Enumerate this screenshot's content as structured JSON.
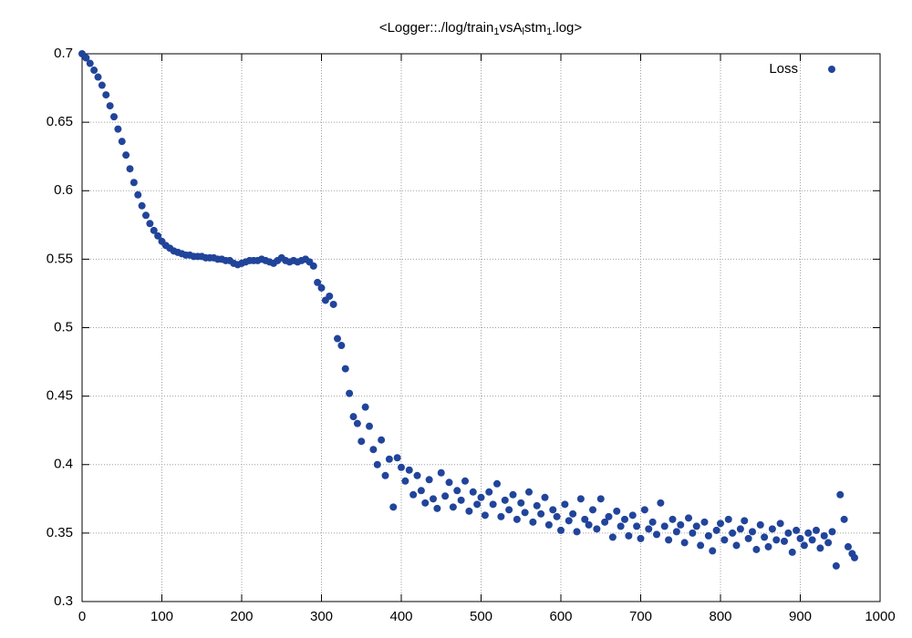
{
  "chart_data": {
    "type": "scatter",
    "title": "<Logger::./log/train_1vsA_lstm_1.log>",
    "xlim": [
      0,
      1000
    ],
    "xticks": [
      0,
      100,
      200,
      300,
      400,
      500,
      600,
      700,
      800,
      900,
      1000
    ],
    "ylim": [
      0.3,
      0.7
    ],
    "yticks": [
      0.3,
      0.35,
      0.4,
      0.45,
      0.5,
      0.55,
      0.6,
      0.65,
      0.7
    ],
    "grid": true,
    "legend": "top right",
    "x": [
      0,
      5,
      10,
      15,
      20,
      25,
      30,
      35,
      40,
      45,
      50,
      55,
      60,
      65,
      70,
      75,
      80,
      85,
      90,
      95,
      100,
      105,
      110,
      115,
      120,
      125,
      130,
      135,
      140,
      145,
      150,
      155,
      160,
      165,
      170,
      175,
      180,
      185,
      190,
      195,
      200,
      205,
      210,
      215,
      220,
      225,
      230,
      235,
      240,
      245,
      250,
      255,
      260,
      265,
      270,
      275,
      280,
      285,
      290,
      295,
      300,
      305,
      310,
      315,
      320,
      325,
      330,
      335,
      340,
      345,
      350,
      355,
      360,
      365,
      370,
      375,
      380,
      385,
      390,
      395,
      400,
      405,
      410,
      415,
      420,
      425,
      430,
      435,
      440,
      445,
      450,
      455,
      460,
      465,
      470,
      475,
      480,
      485,
      490,
      495,
      500,
      505,
      510,
      515,
      520,
      525,
      530,
      535,
      540,
      545,
      550,
      555,
      560,
      565,
      570,
      575,
      580,
      585,
      590,
      595,
      600,
      605,
      610,
      615,
      620,
      625,
      630,
      635,
      640,
      645,
      650,
      655,
      660,
      665,
      670,
      675,
      680,
      685,
      690,
      695,
      700,
      705,
      710,
      715,
      720,
      725,
      730,
      735,
      740,
      745,
      750,
      755,
      760,
      765,
      770,
      775,
      780,
      785,
      790,
      795,
      800,
      805,
      810,
      815,
      820,
      825,
      830,
      835,
      840,
      845,
      850,
      855,
      860,
      865,
      870,
      875,
      880,
      885,
      890,
      895,
      900,
      905,
      910,
      915,
      920,
      925,
      930,
      935,
      940,
      945,
      950,
      955,
      960,
      965,
      968
    ],
    "series": [
      {
        "name": "Loss",
        "color": "#21449b",
        "values": [
          0.7,
          0.697,
          0.693,
          0.688,
          0.683,
          0.677,
          0.67,
          0.662,
          0.654,
          0.645,
          0.636,
          0.626,
          0.616,
          0.606,
          0.597,
          0.589,
          0.582,
          0.576,
          0.571,
          0.567,
          0.563,
          0.56,
          0.558,
          0.556,
          0.555,
          0.554,
          0.553,
          0.553,
          0.552,
          0.552,
          0.552,
          0.551,
          0.551,
          0.551,
          0.55,
          0.55,
          0.549,
          0.549,
          0.547,
          0.546,
          0.547,
          0.548,
          0.549,
          0.549,
          0.549,
          0.55,
          0.549,
          0.548,
          0.547,
          0.549,
          0.551,
          0.549,
          0.548,
          0.549,
          0.548,
          0.549,
          0.55,
          0.548,
          0.545,
          0.533,
          0.529,
          0.52,
          0.523,
          0.517,
          0.492,
          0.487,
          0.47,
          0.452,
          0.435,
          0.43,
          0.417,
          0.442,
          0.428,
          0.411,
          0.4,
          0.418,
          0.392,
          0.404,
          0.369,
          0.405,
          0.398,
          0.388,
          0.396,
          0.378,
          0.392,
          0.381,
          0.372,
          0.389,
          0.375,
          0.368,
          0.394,
          0.377,
          0.387,
          0.369,
          0.381,
          0.374,
          0.388,
          0.366,
          0.38,
          0.371,
          0.376,
          0.363,
          0.38,
          0.371,
          0.386,
          0.362,
          0.374,
          0.367,
          0.378,
          0.36,
          0.372,
          0.365,
          0.38,
          0.358,
          0.37,
          0.364,
          0.376,
          0.356,
          0.367,
          0.362,
          0.352,
          0.371,
          0.359,
          0.364,
          0.351,
          0.375,
          0.36,
          0.356,
          0.367,
          0.353,
          0.375,
          0.358,
          0.362,
          0.347,
          0.366,
          0.355,
          0.36,
          0.348,
          0.363,
          0.355,
          0.346,
          0.367,
          0.353,
          0.358,
          0.349,
          0.372,
          0.355,
          0.345,
          0.36,
          0.351,
          0.356,
          0.343,
          0.361,
          0.35,
          0.355,
          0.341,
          0.358,
          0.348,
          0.337,
          0.352,
          0.357,
          0.345,
          0.36,
          0.35,
          0.341,
          0.353,
          0.359,
          0.346,
          0.351,
          0.338,
          0.356,
          0.347,
          0.34,
          0.353,
          0.345,
          0.357,
          0.344,
          0.35,
          0.336,
          0.352,
          0.346,
          0.341,
          0.35,
          0.345,
          0.352,
          0.339,
          0.348,
          0.343,
          0.351,
          0.326,
          0.378,
          0.36,
          0.34,
          0.335,
          0.332
        ]
      }
    ]
  }
}
